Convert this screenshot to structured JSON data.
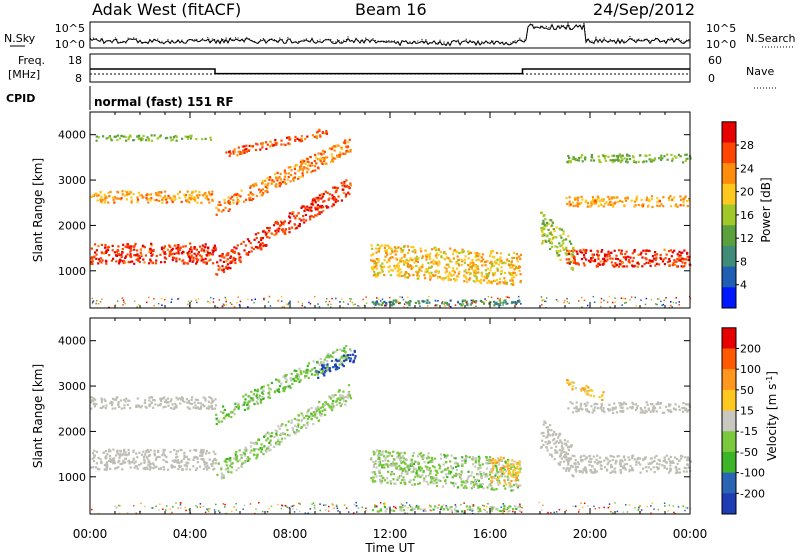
{
  "header": {
    "station": "Adak West (fitACF)",
    "beam": "Beam 16",
    "date": "24/Sep/2012"
  },
  "noise_panel": {
    "left_label": "N.Sky",
    "right_label": "N.Search",
    "left_ticks": [
      "10^5",
      "10^0"
    ],
    "right_ticks": [
      "10^5",
      "10^0"
    ]
  },
  "freq_panel": {
    "left_label_1": "Freq.",
    "left_label_2": "[MHz]",
    "right_label": "Nave",
    "left_ticks": [
      "18",
      "8"
    ],
    "right_ticks": [
      "60",
      "0"
    ]
  },
  "cpid": {
    "label": "CPID",
    "mode_text": "normal (fast) 151 RF"
  },
  "colors": {
    "power_scale": [
      "#0018ff",
      "#1e5fb4",
      "#3f8c78",
      "#5aa03c",
      "#a0c828",
      "#ffc81e",
      "#ff8c0a",
      "#ff4600",
      "#e60000"
    ],
    "velocity_scale": [
      "#1e3cb4",
      "#2a64b4",
      "#3cb428",
      "#7ac83c",
      "#c8c8c0",
      "#ffc81e",
      "#ff961e",
      "#ff5a00",
      "#e60000"
    ],
    "ground_scatter": "#bebeb4"
  },
  "chart_data": [
    {
      "type": "heatmap",
      "name": "power",
      "x_unit": "Time UT",
      "xlabel": "Time UT",
      "xlim": [
        "00:00",
        "24:00"
      ],
      "x_ticks": [
        "00:00",
        "04:00",
        "08:00",
        "12:00",
        "16:00",
        "20:00",
        "00:00"
      ],
      "ylabel": "Slant Range [km]",
      "ylim": [
        180,
        4500
      ],
      "y_ticks": [
        "1000",
        "2000",
        "3000",
        "4000"
      ],
      "colorbar": {
        "label": "Power [dB]",
        "range": [
          0,
          32
        ],
        "ticks": [
          "4",
          "8",
          "12",
          "16",
          "20",
          "24",
          "28"
        ]
      },
      "bands": [
        {
          "t_start": 0.0,
          "t_end": 5.0,
          "r0_start": 1400,
          "r0_end": 1400,
          "width": 450,
          "value": 28
        },
        {
          "t_start": 0.0,
          "t_end": 5.0,
          "r0_start": 2650,
          "r0_end": 2650,
          "width": 260,
          "value": 22
        },
        {
          "t_start": 0.2,
          "t_end": 4.8,
          "r0_start": 3950,
          "r0_end": 3950,
          "width": 120,
          "value": 14
        },
        {
          "t_start": 5.0,
          "t_end": 10.4,
          "r0_start": 1100,
          "r0_end": 2900,
          "width": 420,
          "value": 28
        },
        {
          "t_start": 5.0,
          "t_end": 10.4,
          "r0_start": 2350,
          "r0_end": 3800,
          "width": 360,
          "value": 24
        },
        {
          "t_start": 5.4,
          "t_end": 9.6,
          "r0_start": 3600,
          "r0_end": 4100,
          "width": 180,
          "value": 26
        },
        {
          "t_start": 11.2,
          "t_end": 17.2,
          "r0_start": 1260,
          "r0_end": 1060,
          "width": 720,
          "value": 20
        },
        {
          "t_start": 11.2,
          "t_end": 17.2,
          "r0_start": 320,
          "r0_end": 320,
          "width": 120,
          "value": 10
        },
        {
          "t_start": 18.0,
          "t_end": 19.3,
          "r0_start": 2000,
          "r0_end": 1350,
          "width": 700,
          "value": 16
        },
        {
          "t_start": 19.0,
          "t_end": 24.0,
          "r0_start": 1300,
          "r0_end": 1300,
          "width": 380,
          "value": 28
        },
        {
          "t_start": 19.0,
          "t_end": 24.0,
          "r0_start": 2550,
          "r0_end": 2550,
          "width": 240,
          "value": 22
        },
        {
          "t_start": 19.0,
          "t_end": 24.0,
          "r0_start": 3500,
          "r0_end": 3500,
          "width": 180,
          "value": 14
        }
      ]
    },
    {
      "type": "heatmap",
      "name": "velocity",
      "x_unit": "Time UT",
      "xlabel": "Time UT",
      "xlim": [
        "00:00",
        "24:00"
      ],
      "x_ticks": [
        "00:00",
        "04:00",
        "08:00",
        "12:00",
        "16:00",
        "20:00",
        "00:00"
      ],
      "ylabel": "Slant Range [km]",
      "ylim": [
        180,
        4500
      ],
      "y_ticks": [
        "1000",
        "2000",
        "3000",
        "4000"
      ],
      "colorbar": {
        "label": "Velocity [m s",
        "label_sup": "-1",
        "label_end": "]",
        "range": [
          -250,
          250
        ],
        "ticks": [
          "-200",
          "-100",
          "-50",
          "-15",
          "15",
          "50",
          "100",
          "200"
        ]
      },
      "bands": [
        {
          "t_start": 0.0,
          "t_end": 5.0,
          "r0_start": 1400,
          "r0_end": 1400,
          "width": 450,
          "value": 0
        },
        {
          "t_start": 0.0,
          "t_end": 5.0,
          "r0_start": 2650,
          "r0_end": 2650,
          "width": 260,
          "value": 0
        },
        {
          "t_start": 5.0,
          "t_end": 10.4,
          "r0_start": 1100,
          "r0_end": 2900,
          "width": 420,
          "value": -40
        },
        {
          "t_start": 5.0,
          "t_end": 10.4,
          "r0_start": 2350,
          "r0_end": 3800,
          "width": 360,
          "value": -60
        },
        {
          "t_start": 9.0,
          "t_end": 10.6,
          "r0_start": 3300,
          "r0_end": 3700,
          "width": 250,
          "value": -220
        },
        {
          "t_start": 11.2,
          "t_end": 17.2,
          "r0_start": 1260,
          "r0_end": 1060,
          "width": 720,
          "value": -40
        },
        {
          "t_start": 16.0,
          "t_end": 17.2,
          "r0_start": 1200,
          "r0_end": 1100,
          "width": 600,
          "value": 60
        },
        {
          "t_start": 11.2,
          "t_end": 17.2,
          "r0_start": 320,
          "r0_end": 320,
          "width": 120,
          "value": -40
        },
        {
          "t_start": 18.0,
          "t_end": 19.3,
          "r0_start": 2000,
          "r0_end": 1350,
          "width": 700,
          "value": 0
        },
        {
          "t_start": 19.0,
          "t_end": 24.0,
          "r0_start": 1300,
          "r0_end": 1300,
          "width": 380,
          "value": 0
        },
        {
          "t_start": 19.0,
          "t_end": 24.0,
          "r0_start": 2550,
          "r0_end": 2550,
          "width": 240,
          "value": 0
        },
        {
          "t_start": 19.0,
          "t_end": 20.5,
          "r0_start": 3100,
          "r0_end": 2800,
          "width": 200,
          "value": 60
        }
      ]
    }
  ],
  "frequency_series": {
    "x_hours": [
      0,
      5.0,
      5.0,
      17.3,
      17.3,
      24
    ],
    "freq_mhz": [
      12.5,
      12.5,
      10.2,
      10.2,
      12.5,
      12.5
    ]
  }
}
